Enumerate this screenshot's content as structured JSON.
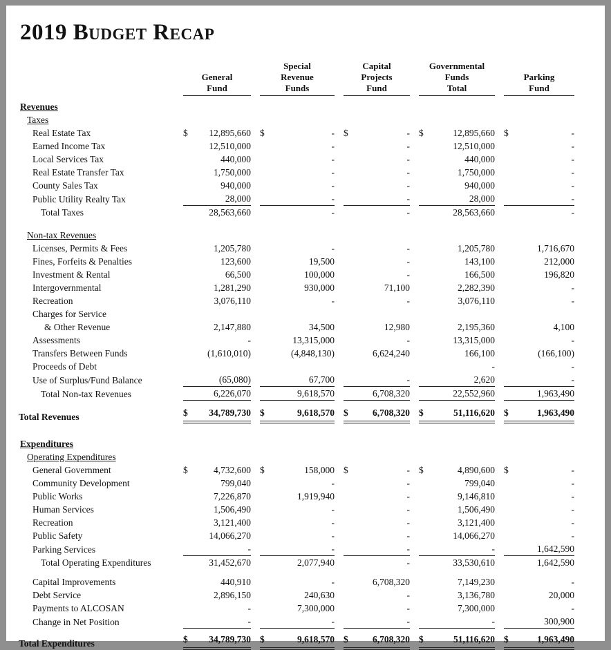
{
  "title": "2019 Budget Recap",
  "header": {
    "cols": [
      {
        "name": "general-fund",
        "lines": [
          "",
          "General",
          "Fund"
        ]
      },
      {
        "name": "special-revenue",
        "lines": [
          "Special",
          "Revenue",
          "Funds"
        ]
      },
      {
        "name": "capital-projects",
        "lines": [
          "Capital",
          "Projects",
          "Fund"
        ]
      },
      {
        "name": "governmental-total",
        "lines": [
          "Governmental",
          "Funds",
          "Total"
        ]
      },
      {
        "name": "parking-fund",
        "lines": [
          "",
          "Parking",
          "Fund"
        ]
      }
    ]
  },
  "table": {
    "columns": [
      "General Fund",
      "Special Revenue Funds",
      "Capital Projects Fund",
      "Governmental Funds Total",
      "Parking Fund"
    ],
    "rows": [
      {
        "style": "section",
        "label": "Revenues"
      },
      {
        "style": "subsection",
        "label": "Taxes"
      },
      {
        "style": "item",
        "label": "Real Estate Tax",
        "dollar": true,
        "values": [
          "12,895,660",
          "-",
          "-",
          "12,895,660",
          "-"
        ]
      },
      {
        "style": "item",
        "label": "Earned Income Tax",
        "values": [
          "12,510,000",
          "-",
          "-",
          "12,510,000",
          "-"
        ]
      },
      {
        "style": "item",
        "label": "Local Services Tax",
        "values": [
          "440,000",
          "-",
          "-",
          "440,000",
          "-"
        ]
      },
      {
        "style": "item",
        "label": "Real Estate Transfer Tax",
        "values": [
          "1,750,000",
          "-",
          "-",
          "1,750,000",
          "-"
        ]
      },
      {
        "style": "item",
        "label": "County Sales Tax",
        "values": [
          "940,000",
          "-",
          "-",
          "940,000",
          "-"
        ]
      },
      {
        "style": "item",
        "label": "Public Utility Realty Tax",
        "values": [
          "28,000",
          "-",
          "-",
          "28,000",
          "-"
        ],
        "rule": "single"
      },
      {
        "style": "total",
        "label": "Total Taxes",
        "values": [
          "28,563,660",
          "-",
          "-",
          "28,563,660",
          "-"
        ]
      },
      {
        "style": "spacer",
        "h": 14
      },
      {
        "style": "subsection",
        "label": "Non-tax Revenues"
      },
      {
        "style": "item",
        "label": "Licenses, Permits & Fees",
        "values": [
          "1,205,780",
          "-",
          "-",
          "1,205,780",
          "1,716,670"
        ]
      },
      {
        "style": "item",
        "label": "Fines, Forfeits & Penalties",
        "values": [
          "123,600",
          "19,500",
          "-",
          "143,100",
          "212,000"
        ]
      },
      {
        "style": "item",
        "label": "Investment & Rental",
        "values": [
          "66,500",
          "100,000",
          "-",
          "166,500",
          "196,820"
        ]
      },
      {
        "style": "item",
        "label": "Intergovernmental",
        "values": [
          "1,281,290",
          "930,000",
          "71,100",
          "2,282,390",
          "-"
        ]
      },
      {
        "style": "item",
        "label": "Recreation",
        "values": [
          "3,076,110",
          "-",
          "-",
          "3,076,110",
          "-"
        ]
      },
      {
        "style": "item",
        "label": "Charges for Service"
      },
      {
        "style": "item-deep",
        "label": "& Other Revenue",
        "values": [
          "2,147,880",
          "34,500",
          "12,980",
          "2,195,360",
          "4,100"
        ]
      },
      {
        "style": "item",
        "label": "Assessments",
        "values": [
          "-",
          "13,315,000",
          "-",
          "13,315,000",
          "-"
        ]
      },
      {
        "style": "item",
        "label": "Transfers Between Funds",
        "values": [
          "(1,610,010)",
          "(4,848,130)",
          "6,624,240",
          "166,100",
          "(166,100)"
        ]
      },
      {
        "style": "item",
        "label": "Proceeds of Debt",
        "values": [
          "",
          "",
          "",
          "-",
          "-"
        ]
      },
      {
        "style": "item",
        "label": "Use of Surplus/Fund Balance",
        "values": [
          "(65,080)",
          "67,700",
          "-",
          "2,620",
          "-"
        ],
        "rule": "single"
      },
      {
        "style": "total",
        "label": "Total Non-tax Revenues",
        "values": [
          "6,226,070",
          "9,618,570",
          "6,708,320",
          "22,552,960",
          "1,963,490"
        ],
        "rule": "single"
      },
      {
        "style": "spacer",
        "h": 8
      },
      {
        "style": "grand",
        "label": "Total Revenues",
        "dollar": true,
        "values": [
          "34,789,730",
          "9,618,570",
          "6,708,320",
          "51,116,620",
          "1,963,490"
        ],
        "rule": "double"
      },
      {
        "style": "spacer",
        "h": 20
      },
      {
        "style": "section",
        "label": "Expenditures"
      },
      {
        "style": "subsection",
        "label": "Operating Expenditures"
      },
      {
        "style": "item",
        "label": "General Government",
        "dollar": true,
        "values": [
          "4,732,600",
          "158,000",
          "-",
          "4,890,600",
          "-"
        ]
      },
      {
        "style": "item",
        "label": "Community Development",
        "values": [
          "799,040",
          "-",
          "-",
          "799,040",
          "-"
        ]
      },
      {
        "style": "item",
        "label": "Public Works",
        "values": [
          "7,226,870",
          "1,919,940",
          "-",
          "9,146,810",
          "-"
        ]
      },
      {
        "style": "item",
        "label": "Human Services",
        "values": [
          "1,506,490",
          "-",
          "-",
          "1,506,490",
          "-"
        ]
      },
      {
        "style": "item",
        "label": "Recreation",
        "values": [
          "3,121,400",
          "-",
          "-",
          "3,121,400",
          "-"
        ]
      },
      {
        "style": "item",
        "label": "Public Safety",
        "values": [
          "14,066,270",
          "-",
          "-",
          "14,066,270",
          "-"
        ]
      },
      {
        "style": "item",
        "label": "Parking Services",
        "values": [
          "-",
          "-",
          "-",
          "-",
          "1,642,590"
        ],
        "rule": "single"
      },
      {
        "style": "total",
        "label": "Total Operating Expenditures",
        "values": [
          "31,452,670",
          "2,077,940",
          "-",
          "33,530,610",
          "1,642,590"
        ]
      },
      {
        "style": "spacer",
        "h": 9
      },
      {
        "style": "item",
        "label": "Capital Improvements",
        "values": [
          "440,910",
          "-",
          "6,708,320",
          "7,149,230",
          "-"
        ]
      },
      {
        "style": "item",
        "label": "Debt Service",
        "values": [
          "2,896,150",
          "240,630",
          "-",
          "3,136,780",
          "20,000"
        ]
      },
      {
        "style": "item",
        "label": "Payments to ALCOSAN",
        "values": [
          "-",
          "7,300,000",
          "-",
          "7,300,000",
          "-"
        ]
      },
      {
        "style": "item",
        "label": "Change in Net Position",
        "values": [
          "-",
          "-",
          "-",
          "-",
          "300,900"
        ],
        "rule": "single"
      },
      {
        "style": "spacer",
        "h": 6
      },
      {
        "style": "grand",
        "label": "Total Expenditures",
        "dollar": true,
        "values": [
          "34,789,730",
          "9,618,570",
          "6,708,320",
          "51,116,620",
          "1,963,490"
        ],
        "rule": "double"
      }
    ]
  },
  "colors": {
    "frame": "#8f8f8f",
    "page": "#ffffff",
    "text": "#121212",
    "rule": "#222222"
  }
}
